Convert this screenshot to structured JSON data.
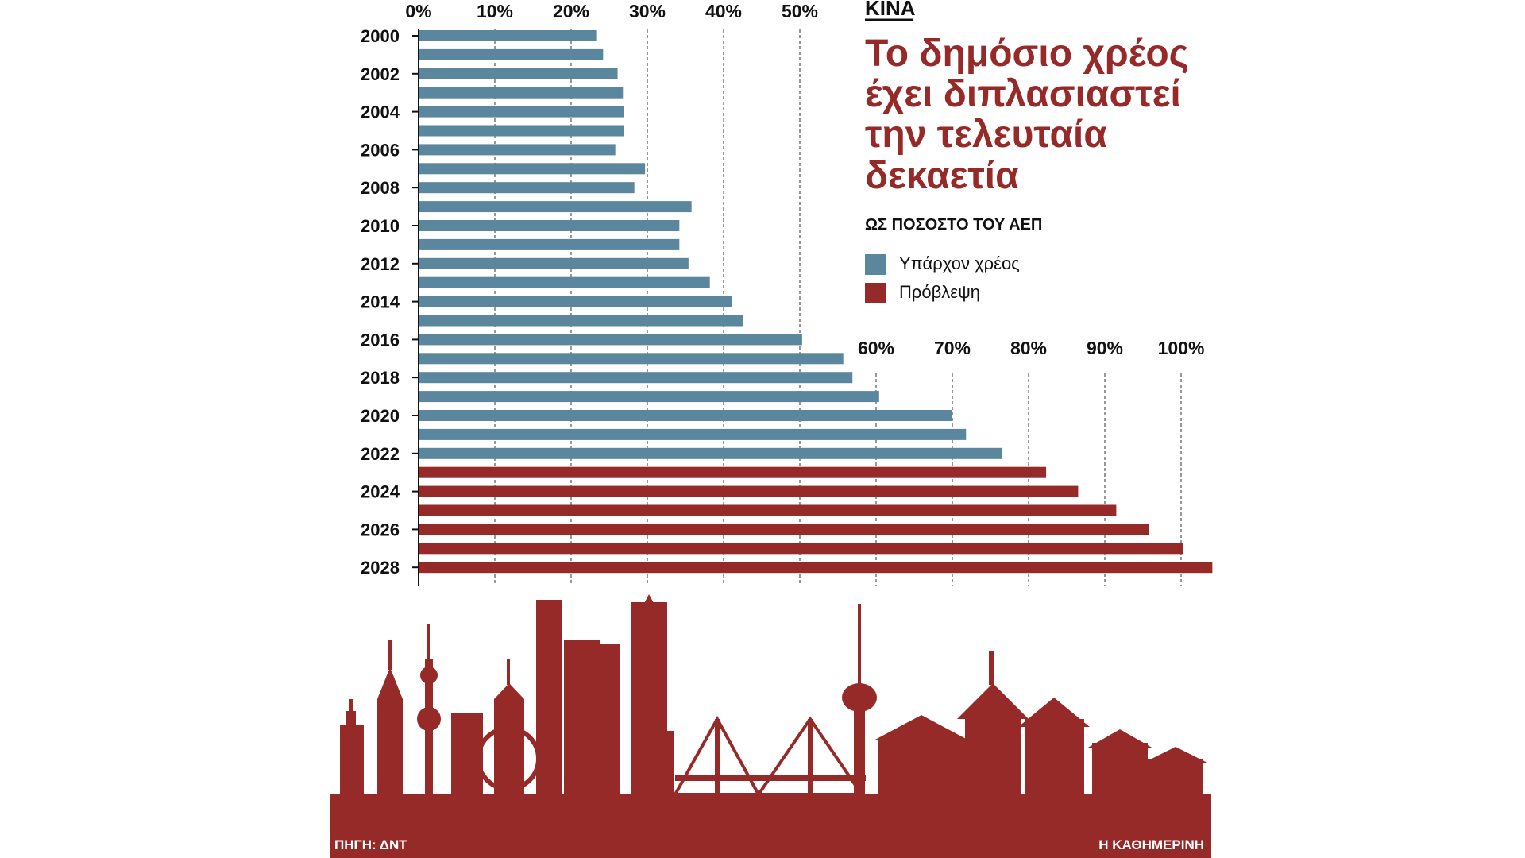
{
  "kicker": "ΚΙΝΑ",
  "title_lines": [
    "Το δημόσιο χρέος",
    "έχει διπλασιαστεί",
    "την τελευταία",
    "δεκαετία"
  ],
  "subtitle": "ΩΣ ΠΟΣΟΣΤΟ ΤΟΥ ΑΕΠ",
  "source": "ΠΗΓΗ: ΔΝΤ",
  "publisher": "Η ΚΑΘΗΜΕΡΙΝΗ",
  "colors": {
    "existing": "#5a879e",
    "forecast": "#962a29",
    "text": "#111111"
  },
  "chart_data": {
    "type": "bar",
    "orientation": "horizontal",
    "categories": [
      "2000",
      "2001",
      "2002",
      "2003",
      "2004",
      "2005",
      "2006",
      "2007",
      "2008",
      "2009",
      "2010",
      "2011",
      "2012",
      "2013",
      "2014",
      "2015",
      "2016",
      "2017",
      "2018",
      "2019",
      "2020",
      "2021",
      "2022",
      "2023",
      "2024",
      "2025",
      "2026",
      "2027",
      "2028"
    ],
    "year_labels": [
      "2000",
      "2002",
      "2004",
      "2006",
      "2008",
      "2010",
      "2012",
      "2014",
      "2016",
      "2018",
      "2020",
      "2022",
      "2024",
      "2026",
      "2028"
    ],
    "values": [
      23.4,
      24.2,
      26.1,
      26.8,
      26.9,
      26.9,
      25.8,
      29.7,
      28.3,
      35.8,
      34.2,
      34.2,
      35.4,
      38.2,
      41.1,
      42.5,
      50.3,
      55.7,
      56.9,
      60.4,
      69.9,
      71.8,
      76.5,
      82.3,
      86.5,
      91.5,
      95.8,
      100.3,
      104.1
    ],
    "series": [
      {
        "name": "Υπάρχον χρέος",
        "from": "2000",
        "to": "2022"
      },
      {
        "name": "Πρόβλεψη",
        "from": "2023",
        "to": "2028"
      }
    ],
    "ticks_top": [
      "0%",
      "10%",
      "20%",
      "30%",
      "40%",
      "50%"
    ],
    "ticks_lower": [
      "60%",
      "70%",
      "80%",
      "90%",
      "100%"
    ],
    "xlim": [
      0,
      104.1
    ],
    "grid": true,
    "legend_position": "right"
  }
}
